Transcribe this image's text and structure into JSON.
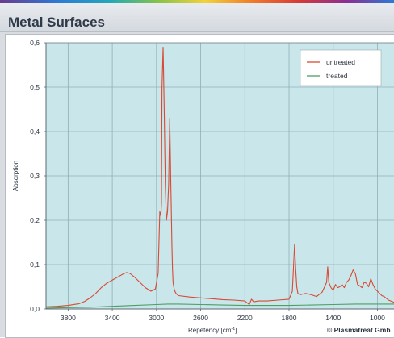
{
  "window": {
    "title": "Metal Surfaces"
  },
  "credit": "© Plasmatreat Gmb",
  "colors": {
    "plot_background": "#c9e6ea",
    "grid": "#8fb0b8",
    "untreated": "#d84a35",
    "treated": "#4f9e62"
  },
  "chart_data": {
    "type": "line",
    "title": "",
    "xlabel": "Repetency [cm",
    "xlabel_superscript": "-1",
    "xlabel_suffix": "]",
    "ylabel": "Absorption",
    "x_reversed": true,
    "xlim": [
      4000,
      850
    ],
    "ylim": [
      0,
      0.6
    ],
    "xticks": [
      3800,
      3400,
      3000,
      2600,
      2200,
      1800,
      1400,
      1000
    ],
    "xtick_labels": [
      "3800",
      "3400",
      "3000",
      "2600",
      "2200",
      "1800",
      "1400",
      "1000"
    ],
    "yticks": [
      0.0,
      0.1,
      0.2,
      0.3,
      0.4,
      0.5,
      0.6
    ],
    "ytick_labels": [
      "0,0",
      "0,1",
      "0,2",
      "0,3",
      "0,4",
      "0,5",
      "0,6"
    ],
    "grid": true,
    "legend_position": "top-right",
    "series": [
      {
        "name": "untreated",
        "color": "#d84a35",
        "x": [
          4000,
          3900,
          3800,
          3700,
          3650,
          3600,
          3550,
          3500,
          3450,
          3400,
          3350,
          3300,
          3270,
          3240,
          3200,
          3150,
          3100,
          3050,
          3010,
          2985,
          2970,
          2960,
          2955,
          2950,
          2940,
          2930,
          2920,
          2910,
          2900,
          2890,
          2880,
          2870,
          2860,
          2855,
          2850,
          2840,
          2830,
          2820,
          2800,
          2700,
          2600,
          2500,
          2400,
          2300,
          2200,
          2160,
          2140,
          2120,
          2080,
          2000,
          1900,
          1800,
          1770,
          1750,
          1740,
          1730,
          1720,
          1700,
          1650,
          1600,
          1550,
          1500,
          1460,
          1450,
          1440,
          1420,
          1400,
          1380,
          1360,
          1340,
          1320,
          1300,
          1280,
          1260,
          1240,
          1220,
          1200,
          1180,
          1160,
          1140,
          1120,
          1100,
          1080,
          1060,
          1040,
          1020,
          1000,
          980,
          960,
          940,
          900,
          850
        ],
        "y": [
          0.005,
          0.006,
          0.008,
          0.012,
          0.017,
          0.025,
          0.035,
          0.048,
          0.058,
          0.065,
          0.072,
          0.079,
          0.082,
          0.08,
          0.072,
          0.06,
          0.048,
          0.04,
          0.045,
          0.08,
          0.22,
          0.21,
          0.24,
          0.5,
          0.59,
          0.45,
          0.28,
          0.2,
          0.22,
          0.28,
          0.43,
          0.28,
          0.14,
          0.09,
          0.06,
          0.045,
          0.038,
          0.034,
          0.03,
          0.027,
          0.025,
          0.023,
          0.021,
          0.02,
          0.018,
          0.01,
          0.022,
          0.016,
          0.018,
          0.018,
          0.02,
          0.022,
          0.04,
          0.145,
          0.09,
          0.05,
          0.035,
          0.032,
          0.035,
          0.032,
          0.028,
          0.038,
          0.06,
          0.095,
          0.06,
          0.048,
          0.042,
          0.055,
          0.048,
          0.05,
          0.055,
          0.048,
          0.06,
          0.065,
          0.075,
          0.088,
          0.08,
          0.055,
          0.052,
          0.048,
          0.06,
          0.058,
          0.05,
          0.068,
          0.055,
          0.045,
          0.04,
          0.035,
          0.03,
          0.028,
          0.02,
          0.015
        ]
      },
      {
        "name": "treated",
        "color": "#4f9e62",
        "x": [
          4000,
          3800,
          3600,
          3400,
          3200,
          3000,
          2900,
          2800,
          2600,
          2400,
          2200,
          2000,
          1800,
          1600,
          1400,
          1200,
          1000,
          850
        ],
        "y": [
          0.002,
          0.003,
          0.004,
          0.006,
          0.008,
          0.01,
          0.011,
          0.011,
          0.01,
          0.009,
          0.008,
          0.008,
          0.008,
          0.009,
          0.01,
          0.011,
          0.011,
          0.011
        ]
      }
    ]
  }
}
